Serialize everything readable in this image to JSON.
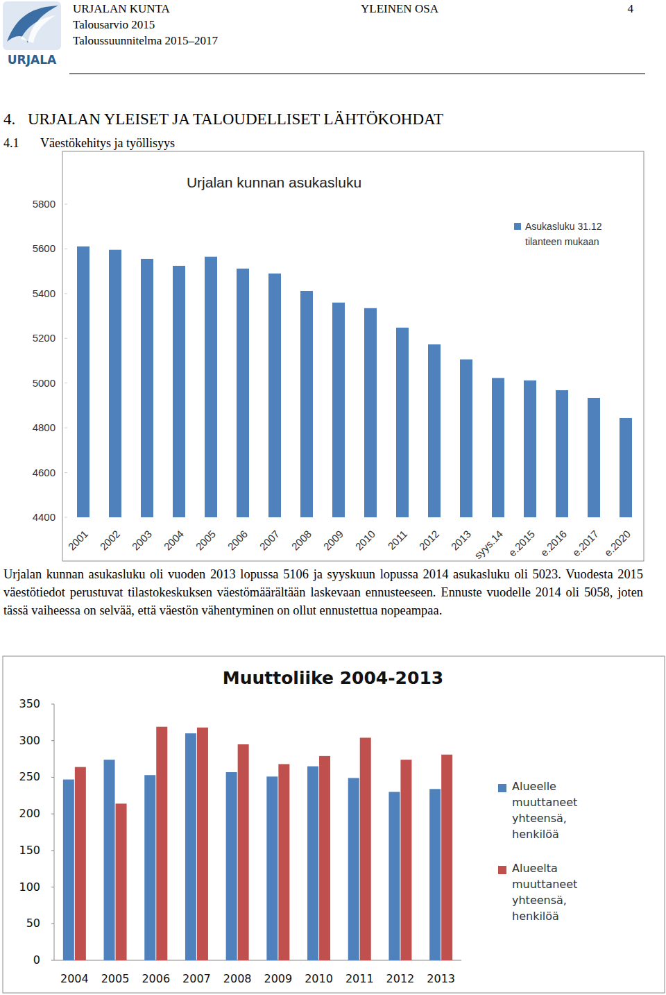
{
  "header": {
    "organization": "URJALAN KUNTA",
    "section": "YLEINEN OSA",
    "page": "4",
    "budget": "Talousarvio 2015",
    "plan": "Taloussuunnitelma 2015–2017",
    "logo_text": "URJALA"
  },
  "headings": [
    {
      "number": "4.",
      "text": "URJALAN YLEISET JA TALOUDELLISET LÄHTÖKOHDAT"
    },
    {
      "number": "4.1",
      "text": "Väestökehitys ja työllisyys"
    }
  ],
  "chart_data": [
    {
      "type": "bar",
      "title": "Urjalan kunnan asukasluku",
      "categories": [
        "2001",
        "2002",
        "2003",
        "2004",
        "2005",
        "2006",
        "2007",
        "2008",
        "2009",
        "2010",
        "2011",
        "2012",
        "2013",
        "syys.14",
        "e.2015",
        "e.2016",
        "e.2017",
        "e.2020"
      ],
      "series": [
        {
          "name": "Asukasluku 31.12 tilanteen mukaan",
          "color": "#4f81bd",
          "values": [
            5611,
            5596,
            5555,
            5524,
            5565,
            5512,
            5490,
            5412,
            5360,
            5335,
            5248,
            5173,
            5106,
            5023,
            5012,
            4968,
            4934,
            4844
          ]
        }
      ],
      "ylim": [
        4400,
        5800
      ],
      "yticks": [
        4400,
        4600,
        4800,
        5000,
        5200,
        5400,
        5600,
        5800
      ],
      "legend": "right"
    },
    {
      "type": "bar",
      "title": "Muuttoliike 2004-2013",
      "categories": [
        "2004",
        "2005",
        "2006",
        "2007",
        "2008",
        "2009",
        "2010",
        "2011",
        "2012",
        "2013"
      ],
      "series": [
        {
          "name": "Alueelle muuttaneet yhteensä, henkilöä",
          "color": "#4f81bd",
          "values": [
            247,
            274,
            253,
            310,
            257,
            251,
            265,
            249,
            230,
            234
          ]
        },
        {
          "name": "Alueelta muuttaneet yhteensä, henkilöä",
          "color": "#c0504d",
          "values": [
            264,
            214,
            319,
            318,
            295,
            268,
            279,
            304,
            274,
            281
          ]
        }
      ],
      "ylim": [
        0,
        350
      ],
      "yticks": [
        0,
        50,
        100,
        150,
        200,
        250,
        300,
        350
      ],
      "legend": "right"
    }
  ],
  "paragraph": "Urjalan kunnan asukasluku oli vuoden 2013 lopussa 5106 ja syyskuun lopussa 2014 asukasluku oli 5023. Vuodesta 2015 väestötiedot perustuvat tilastokeskuksen väestömäärältään laskevaan ennusteeseen. Ennuste vuodelle 2014 oli 5058, joten tässä vaiheessa on selvää, että väestön vähentyminen on ollut ennustettua nopeampaa."
}
